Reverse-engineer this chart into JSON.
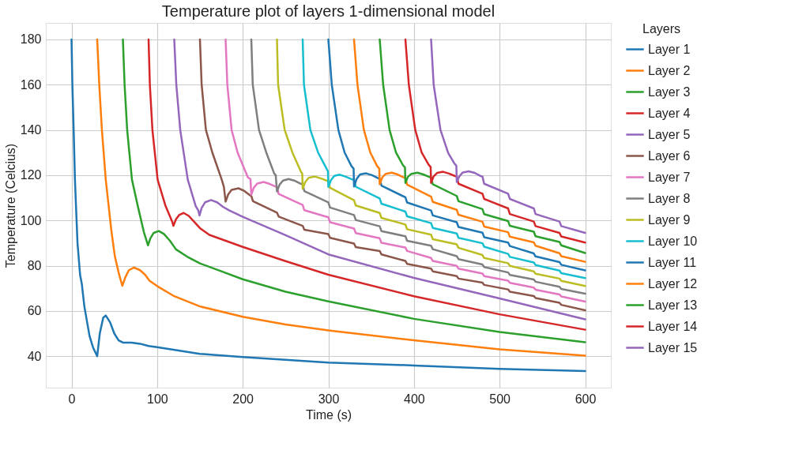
{
  "chart_data": {
    "type": "line",
    "title": "Temperature plot of layers 1-dimensional model",
    "xlabel": "Time (s)",
    "ylabel": "Temperature (Celcius)",
    "legend_title": "Layers",
    "xlim": [
      -30,
      630
    ],
    "xticks": [
      0,
      100,
      200,
      300,
      400,
      500,
      600
    ],
    "ylim": [
      26.1,
      187.3
    ],
    "yticks": [
      40,
      60,
      80,
      100,
      120,
      140,
      160,
      180
    ],
    "grid": true,
    "legend": "right",
    "line_style": "solid",
    "series": [
      {
        "name": "Layer 1",
        "color": "#1f77b4",
        "x": [
          0,
          1,
          2.5,
          4,
          7,
          10,
          12,
          15,
          21,
          25,
          30,
          33,
          37,
          40,
          45,
          50,
          55,
          60,
          70,
          80,
          90,
          100,
          150,
          200,
          300,
          400,
          500,
          600
        ],
        "values": [
          180,
          160,
          140,
          118,
          90,
          76,
          72,
          62,
          49,
          44,
          40,
          50,
          57,
          58,
          55,
          50,
          47,
          46,
          46,
          45.5,
          44.5,
          44,
          41,
          39.6,
          37.2,
          35.9,
          34.4,
          33.4
        ]
      },
      {
        "name": "Layer 2",
        "color": "#ff7f0e",
        "x": [
          30,
          32.4,
          35.5,
          40,
          46.7,
          50.7,
          55,
          59.3,
          63,
          67,
          73,
          80,
          86,
          91,
          100,
          120,
          150,
          200,
          250,
          300,
          400,
          500,
          600
        ],
        "values": [
          180,
          160,
          140,
          118,
          95,
          84,
          77,
          71.1,
          75,
          78,
          79.2,
          78,
          76,
          73.4,
          71,
          66.5,
          62,
          57.4,
          54,
          51.4,
          47,
          43,
          40.2
        ]
      },
      {
        "name": "Layer 3",
        "color": "#2ca02c",
        "x": [
          60,
          62,
          65,
          70.6,
          77.4,
          84.4,
          89.3,
          92,
          96,
          102,
          108,
          115,
          122,
          135,
          150,
          175,
          200,
          250,
          300,
          400,
          500,
          600
        ],
        "values": [
          180,
          160,
          140,
          118,
          106.4,
          95,
          89,
          92,
          94.5,
          95.3,
          94,
          91,
          87.2,
          84,
          81,
          77.5,
          74,
          68.5,
          64.2,
          56.5,
          50.7,
          46.2
        ]
      },
      {
        "name": "Layer 4",
        "color": "#d62728",
        "x": [
          90,
          91.5,
          94.5,
          100.6,
          109.8,
          117.6,
          119,
          122,
          126,
          131,
          137,
          143,
          150,
          161,
          200,
          250,
          300,
          400,
          500,
          600
        ],
        "values": [
          180,
          160,
          140,
          118,
          106.4,
          99.5,
          97.6,
          100.5,
          102.5,
          103.3,
          102,
          99.5,
          96.6,
          93.6,
          88.3,
          82,
          76,
          66.5,
          58.5,
          51.7
        ]
      },
      {
        "name": "Layer 5",
        "color": "#9467bd",
        "x": [
          120,
          122.4,
          127,
          135.8,
          145,
          148,
          149.5,
          152,
          156,
          163,
          170,
          177,
          184,
          200,
          250,
          300,
          400,
          500,
          600
        ],
        "values": [
          180,
          160,
          140,
          118,
          106.4,
          104.5,
          102.2,
          105.5,
          108,
          109,
          108,
          106,
          104.5,
          101.6,
          93.5,
          85,
          74.6,
          65.5,
          56.3
        ]
      },
      {
        "name": "Layer 6",
        "color": "#8c564b",
        "x": [
          150,
          152,
          157,
          164.5,
          175.5,
          178,
          180,
          183,
          187,
          195,
          202,
          208,
          210,
          212,
          240,
          242,
          270,
          272,
          300,
          302,
          330,
          332,
          360,
          362,
          390,
          392,
          420,
          422,
          450,
          452,
          480,
          482,
          510,
          512,
          540,
          542,
          570,
          572,
          600
        ],
        "values": [
          180,
          160,
          140,
          130,
          118,
          114.8,
          108.3,
          111.5,
          113.5,
          114.2,
          113,
          111.2,
          110.8,
          108.5,
          103.4,
          101.7,
          97.6,
          95.9,
          94,
          92.3,
          89.8,
          88.2,
          86.5,
          85,
          82.1,
          80.8,
          78.7,
          77.5,
          75.4,
          74.3,
          72.5,
          71.5,
          69.5,
          68.5,
          66.6,
          65.7,
          63.6,
          62.7,
          60.3
        ]
      },
      {
        "name": "Layer 7",
        "color": "#e377c2",
        "x": [
          180,
          182,
          187,
          194,
          206,
          209,
          210,
          213,
          217,
          224.5,
          231,
          238,
          240,
          242,
          270,
          272,
          300,
          302,
          330,
          332,
          360,
          362,
          390,
          392,
          420,
          422,
          450,
          452,
          480,
          482,
          510,
          512,
          540,
          542,
          570,
          572,
          600
        ],
        "values": [
          180,
          160,
          140,
          130,
          119,
          118.3,
          111.4,
          114.5,
          116.3,
          117,
          116.2,
          115,
          114.7,
          111.7,
          106.8,
          104.5,
          101.4,
          99.2,
          96.4,
          94.4,
          92.1,
          90.1,
          88,
          86.5,
          83.4,
          82.1,
          79.9,
          78.7,
          76.5,
          75.4,
          73.4,
          72.4,
          70.3,
          69.4,
          67.3,
          66.4,
          64.1
        ]
      },
      {
        "name": "Layer 8",
        "color": "#7f7f7f",
        "x": [
          210,
          211.7,
          219,
          227.5,
          236.7,
          238.5,
          240,
          243,
          247,
          253.5,
          261,
          268,
          270,
          272,
          300,
          302,
          330,
          332,
          360,
          362,
          390,
          392,
          420,
          422,
          450,
          452,
          480,
          482,
          510,
          512,
          540,
          542,
          570,
          572,
          600
        ],
        "values": [
          180,
          160,
          140,
          130,
          120.8,
          120,
          112.8,
          115.8,
          117.6,
          118.3,
          117.5,
          116.2,
          115.9,
          112.9,
          108,
          105.7,
          102.4,
          100.2,
          97.4,
          95.3,
          93,
          91,
          88.8,
          87.3,
          84.2,
          82.9,
          80.5,
          79.4,
          77,
          75.9,
          73.9,
          72.9,
          70.7,
          69.7,
          67.6
        ]
      },
      {
        "name": "Layer 9",
        "color": "#bcbd22",
        "x": [
          240,
          241.3,
          249,
          258,
          268,
          269.5,
          270,
          273,
          277,
          284,
          291,
          298,
          300,
          302,
          330,
          332,
          360,
          362,
          390,
          392,
          420,
          422,
          450,
          452,
          480,
          482,
          510,
          512,
          540,
          542,
          570,
          572,
          600
        ],
        "values": [
          180,
          160,
          140,
          130,
          121.5,
          120.7,
          114,
          117,
          118.8,
          119.4,
          118.6,
          117.6,
          117.4,
          114.4,
          108.9,
          106.6,
          103.3,
          101.1,
          98.2,
          96.1,
          93.7,
          91.7,
          89.4,
          87.9,
          84.7,
          83.4,
          81.1,
          79.9,
          77.5,
          76.4,
          74.3,
          73.3,
          71
        ]
      },
      {
        "name": "Layer 10",
        "color": "#17becf",
        "x": [
          270,
          271.5,
          279,
          288,
          297,
          299.5,
          300,
          303,
          307,
          313,
          320,
          328,
          330,
          332,
          360,
          362,
          390,
          392,
          420,
          422,
          450,
          452,
          480,
          482,
          510,
          512,
          540,
          542,
          570,
          572,
          600
        ],
        "values": [
          180,
          160,
          140,
          130,
          123.5,
          121.7,
          114.8,
          117.8,
          119.7,
          120.2,
          119.4,
          118.1,
          117.9,
          114.9,
          109.7,
          107.4,
          103.9,
          101.8,
          98.8,
          96.7,
          94.2,
          92.3,
          89.9,
          88.4,
          85.2,
          83.9,
          81.4,
          80.3,
          77.8,
          76.7,
          74.5
        ]
      },
      {
        "name": "Layer 11",
        "color": "#1f77b4",
        "x": [
          300,
          304,
          311.7,
          319,
          327,
          329.5,
          330,
          333,
          337,
          344,
          351,
          358,
          360,
          362,
          390,
          392,
          420,
          422,
          450,
          452,
          480,
          482,
          510,
          512,
          540,
          542,
          570,
          572,
          600
        ],
        "values": [
          180,
          160,
          140,
          130,
          124,
          122.9,
          115,
          118.3,
          120.3,
          120.8,
          120,
          118.7,
          118.4,
          115.4,
          110.2,
          107.9,
          104.4,
          102.2,
          99.2,
          97.1,
          94.6,
          92.6,
          90.2,
          88.7,
          85.4,
          84.1,
          81.6,
          80.4,
          77.9
        ]
      },
      {
        "name": "Layer 12",
        "color": "#ff7f0e",
        "x": [
          330,
          334,
          341.5,
          349,
          357,
          359.5,
          360,
          363,
          367,
          374,
          381,
          388,
          390,
          392,
          420,
          422,
          450,
          452,
          480,
          482,
          510,
          512,
          540,
          542,
          570,
          572,
          600
        ],
        "values": [
          180,
          160,
          140,
          130,
          124,
          122.9,
          116,
          119,
          120.6,
          121.1,
          120.3,
          119,
          118.8,
          115.8,
          110.5,
          108.2,
          104.7,
          102.5,
          99.4,
          97.3,
          94.8,
          92.8,
          90.3,
          88.8,
          85.5,
          84.2,
          81.7
        ]
      },
      {
        "name": "Layer 13",
        "color": "#2ca02c",
        "x": [
          360,
          364,
          371.5,
          379,
          387,
          389.5,
          390,
          393,
          397,
          404,
          411,
          418,
          420,
          422,
          450,
          452,
          480,
          482,
          510,
          512,
          540,
          542,
          570,
          572,
          600
        ],
        "values": [
          180,
          160,
          140,
          130,
          124.5,
          123.4,
          116.6,
          119.3,
          120.6,
          121.1,
          120.3,
          119.2,
          119,
          116,
          110.8,
          108.5,
          105,
          102.8,
          99.7,
          97.6,
          95,
          93,
          90.5,
          89,
          85.6
        ]
      },
      {
        "name": "Layer 14",
        "color": "#d62728",
        "x": [
          390,
          394,
          401.5,
          409,
          417,
          419.5,
          420,
          423,
          427,
          434,
          441,
          448,
          450,
          452,
          480,
          482,
          510,
          512,
          540,
          542,
          570,
          572,
          600
        ],
        "values": [
          180,
          160,
          140,
          130,
          124.7,
          123.6,
          116.6,
          119.5,
          121,
          121.5,
          120.7,
          119.6,
          119.4,
          116.2,
          111.8,
          109.5,
          105.3,
          102.8,
          99.5,
          97.5,
          94.5,
          92.9,
          90.2
        ]
      },
      {
        "name": "Layer 15",
        "color": "#9467bd",
        "x": [
          420,
          423,
          431,
          440,
          447,
          449.5,
          450,
          453,
          457,
          464,
          471,
          478,
          480,
          482,
          510,
          512,
          540,
          542,
          570,
          572,
          600
        ],
        "values": [
          180,
          160,
          140,
          129.8,
          125.3,
          124.2,
          117,
          119.5,
          121.2,
          121.7,
          121,
          119.6,
          119.4,
          116.2,
          111.8,
          109.5,
          105.3,
          102.8,
          99.5,
          97.5,
          94.5
        ]
      }
    ]
  }
}
